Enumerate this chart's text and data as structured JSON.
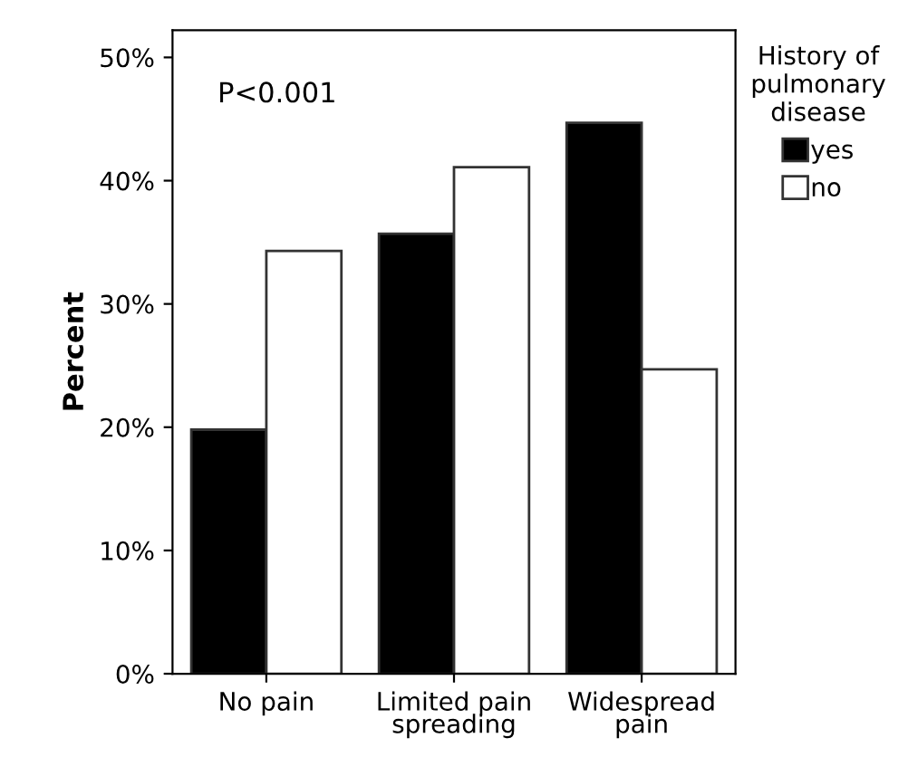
{
  "chart_data": {
    "type": "bar",
    "ylabel": "Percent",
    "legend_title": "History of\npulmonary\ndisease",
    "categories": [
      "No pain",
      "Limited pain\nspreading",
      "Widespread\npain"
    ],
    "series": [
      {
        "name": "yes",
        "color": "#000000",
        "values": [
          19.8,
          35.7,
          44.7
        ]
      },
      {
        "name": "no",
        "color": "#ffffff",
        "values": [
          34.3,
          41.1,
          24.7
        ]
      }
    ],
    "ylim": [
      0,
      52.2
    ],
    "yticks": [
      {
        "value": 0,
        "label": "0%"
      },
      {
        "value": 10,
        "label": "10%"
      },
      {
        "value": 20,
        "label": "20%"
      },
      {
        "value": 30,
        "label": "30%"
      },
      {
        "value": 40,
        "label": "40%"
      },
      {
        "value": 50,
        "label": "50%"
      }
    ],
    "annotations": [
      "P<0.001"
    ],
    "grid": false,
    "legend": "top right"
  }
}
